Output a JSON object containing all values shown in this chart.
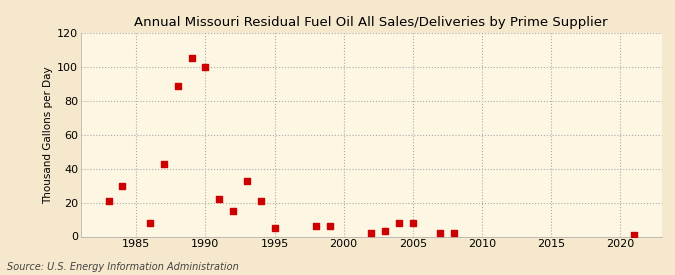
{
  "title": "Annual Missouri Residual Fuel Oil All Sales/Deliveries by Prime Supplier",
  "ylabel": "Thousand Gallons per Day",
  "source": "Source: U.S. Energy Information Administration",
  "background_color": "#f5e8cc",
  "plot_background_color": "#fdf6e3",
  "marker_color": "#cc0000",
  "marker_size": 18,
  "xlim": [
    1981,
    2023
  ],
  "ylim": [
    0,
    120
  ],
  "yticks": [
    0,
    20,
    40,
    60,
    80,
    100,
    120
  ],
  "xticks": [
    1985,
    1990,
    1995,
    2000,
    2005,
    2010,
    2015,
    2020
  ],
  "data_x": [
    1983,
    1984,
    1986,
    1987,
    1988,
    1989,
    1990,
    1991,
    1992,
    1993,
    1994,
    1995,
    1998,
    1999,
    2002,
    2003,
    2004,
    2005,
    2007,
    2008,
    2021
  ],
  "data_y": [
    21,
    30,
    8,
    43,
    89,
    105,
    100,
    22,
    15,
    33,
    21,
    5,
    6,
    6,
    2,
    3,
    8,
    8,
    2,
    2,
    1
  ]
}
